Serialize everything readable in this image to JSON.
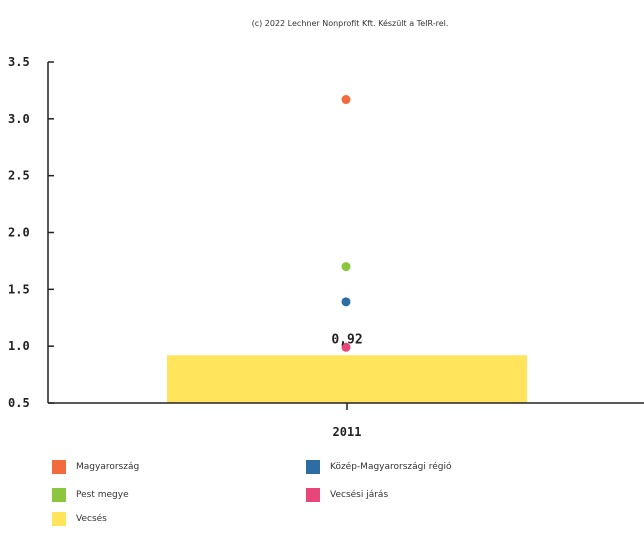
{
  "copyright": "(c) 2022 Lechner Nonprofit Kft. Készült a TeIR-rel.",
  "chart_data": {
    "type": "bar",
    "categories": [
      "2011"
    ],
    "ylim": [
      0.5,
      3.5
    ],
    "yticks": [
      "3.5",
      "3.0",
      "2.5",
      "2.0",
      "1.5",
      "1.0",
      "0.5"
    ],
    "ytick_values": [
      3.5,
      3.0,
      2.5,
      2.0,
      1.5,
      1.0,
      0.5
    ],
    "bar_series": {
      "name": "Vecsés",
      "values": [
        0.92
      ],
      "color": "#ffe45c",
      "data_label": "0,92"
    },
    "point_series": [
      {
        "name": "Magyarország",
        "values": [
          3.17
        ],
        "color": "#f26a3d"
      },
      {
        "name": "Pest megye",
        "values": [
          1.7
        ],
        "color": "#8cc63f"
      },
      {
        "name": "Közép-Magyarországi régió",
        "values": [
          1.39
        ],
        "color": "#2e6da4"
      },
      {
        "name": "Vecsési járás",
        "values": [
          0.99
        ],
        "color": "#e8457a"
      }
    ],
    "grid": false,
    "legend_position": "bottom"
  },
  "legend": [
    {
      "label": "Magyarország",
      "color": "#f26a3d"
    },
    {
      "label": "Közép-Magyarországi régió",
      "color": "#2e6da4"
    },
    {
      "label": "Pest megye",
      "color": "#8cc63f"
    },
    {
      "label": "Vecsési járás",
      "color": "#e8457a"
    },
    {
      "label": "Vecsés",
      "color": "#ffe45c"
    }
  ]
}
